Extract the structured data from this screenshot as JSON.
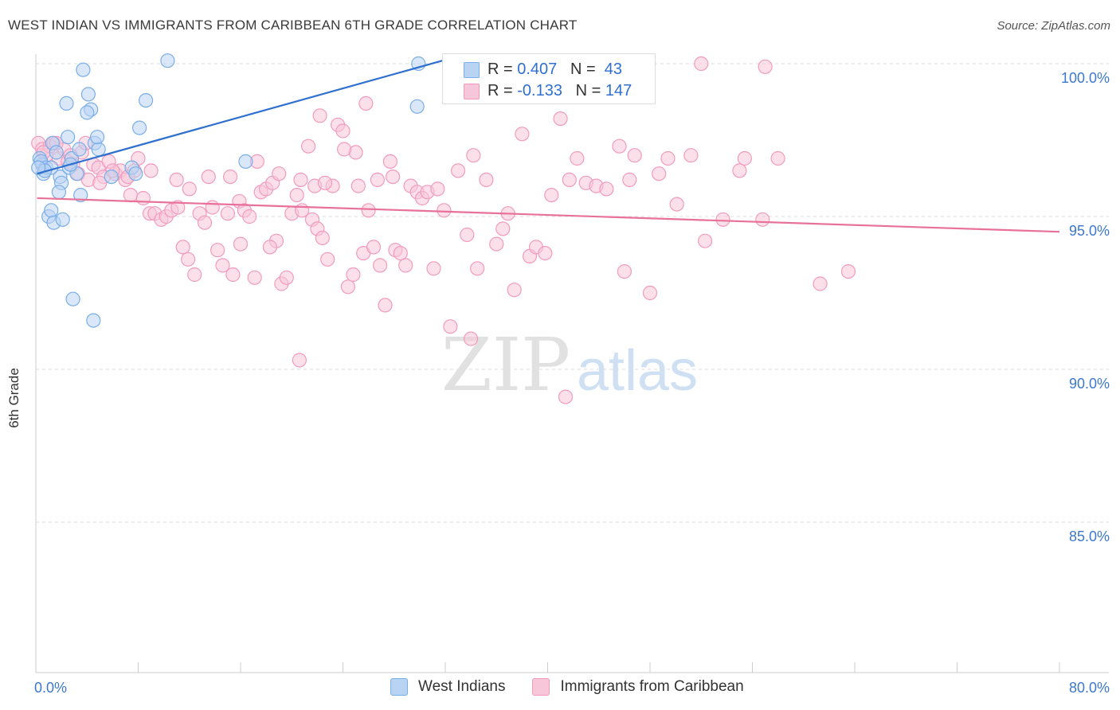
{
  "chart_data": {
    "type": "scatter",
    "title": "WEST INDIAN VS IMMIGRANTS FROM CARIBBEAN 6TH GRADE CORRELATION CHART",
    "source": "Source: ZipAtlas.com",
    "ylabel": "6th Grade",
    "xlim": [
      0,
      80
    ],
    "ylim": [
      80,
      101
    ],
    "x_tick_labels": {
      "left": "0.0%",
      "right": "80.0%"
    },
    "y_ticks": [
      {
        "value": 100,
        "label": "100.0%"
      },
      {
        "value": 95,
        "label": "95.0%"
      },
      {
        "value": 90,
        "label": "90.0%"
      },
      {
        "value": 85,
        "label": "85.0%"
      }
    ],
    "watermark": "ZIPatlas",
    "series": [
      {
        "name": "West Indians",
        "color": "#7aaee8",
        "fill": "#b9d3f3",
        "line_color": "#2f6fd0",
        "R": "0.407",
        "N": "43",
        "trend": {
          "x0": 0.1,
          "y0": 96.4,
          "x1": 33.5,
          "y1": 100.3
        },
        "points": [
          [
            0.3,
            96.9
          ],
          [
            0.5,
            96.7
          ],
          [
            0.6,
            96.4
          ],
          [
            0.4,
            96.8
          ],
          [
            0.8,
            96.6
          ],
          [
            1.0,
            95.0
          ],
          [
            1.2,
            95.2
          ],
          [
            1.4,
            94.8
          ],
          [
            1.3,
            97.4
          ],
          [
            1.9,
            96.3
          ],
          [
            2.0,
            96.1
          ],
          [
            2.1,
            94.9
          ],
          [
            2.6,
            96.6
          ],
          [
            2.8,
            96.9
          ],
          [
            3.2,
            96.4
          ],
          [
            3.4,
            97.2
          ],
          [
            2.4,
            98.7
          ],
          [
            2.5,
            97.6
          ],
          [
            3.7,
            99.8
          ],
          [
            4.1,
            99.0
          ],
          [
            4.3,
            98.5
          ],
          [
            4.6,
            97.4
          ],
          [
            4.9,
            97.2
          ],
          [
            5.9,
            96.3
          ],
          [
            7.5,
            96.6
          ],
          [
            7.8,
            96.4
          ],
          [
            8.1,
            97.9
          ],
          [
            8.6,
            98.8
          ],
          [
            10.3,
            100.1
          ],
          [
            4.8,
            97.6
          ],
          [
            3.5,
            95.7
          ],
          [
            2.9,
            92.3
          ],
          [
            4.5,
            91.6
          ],
          [
            16.4,
            96.8
          ],
          [
            29.9,
            100.0
          ],
          [
            29.8,
            98.6
          ],
          [
            1.2,
            96.6
          ],
          [
            1.8,
            95.8
          ],
          [
            2.7,
            96.7
          ],
          [
            4.0,
            98.4
          ],
          [
            0.7,
            96.5
          ],
          [
            0.2,
            96.6
          ],
          [
            1.6,
            97.1
          ]
        ]
      },
      {
        "name": "Immigrants from Caribbean",
        "color": "#f29bbd",
        "fill": "#f7c6d8",
        "line_color": "#e8719a",
        "R": "-0.133",
        "N": "147",
        "trend": {
          "x0": 0.1,
          "y0": 95.6,
          "x1": 80.0,
          "y1": 94.5
        },
        "points": [
          [
            0.2,
            97.4
          ],
          [
            0.5,
            97.2
          ],
          [
            0.8,
            97.0
          ],
          [
            1.1,
            97.3
          ],
          [
            1.4,
            97.4
          ],
          [
            1.8,
            96.9
          ],
          [
            2.2,
            97.2
          ],
          [
            2.5,
            96.8
          ],
          [
            2.9,
            96.7
          ],
          [
            3.3,
            96.4
          ],
          [
            3.6,
            97.1
          ],
          [
            4.1,
            96.2
          ],
          [
            4.5,
            96.7
          ],
          [
            4.9,
            96.6
          ],
          [
            5.3,
            96.3
          ],
          [
            5.7,
            96.8
          ],
          [
            6.2,
            96.4
          ],
          [
            6.6,
            96.5
          ],
          [
            7.0,
            96.2
          ],
          [
            7.4,
            95.7
          ],
          [
            7.7,
            96.5
          ],
          [
            8.0,
            96.9
          ],
          [
            8.4,
            95.6
          ],
          [
            8.9,
            95.1
          ],
          [
            9.3,
            95.1
          ],
          [
            9.8,
            94.9
          ],
          [
            10.2,
            95.0
          ],
          [
            10.6,
            95.2
          ],
          [
            11.1,
            95.3
          ],
          [
            11.5,
            94.0
          ],
          [
            11.9,
            93.6
          ],
          [
            12.4,
            93.1
          ],
          [
            12.8,
            95.1
          ],
          [
            13.2,
            94.8
          ],
          [
            13.8,
            95.3
          ],
          [
            14.2,
            93.9
          ],
          [
            14.6,
            93.4
          ],
          [
            15.0,
            95.1
          ],
          [
            15.4,
            93.1
          ],
          [
            15.9,
            95.5
          ],
          [
            16.3,
            95.2
          ],
          [
            16.7,
            95.0
          ],
          [
            17.1,
            93.0
          ],
          [
            17.6,
            95.8
          ],
          [
            18.0,
            95.9
          ],
          [
            18.5,
            96.1
          ],
          [
            18.8,
            94.2
          ],
          [
            19.2,
            92.8
          ],
          [
            19.6,
            93.0
          ],
          [
            20.0,
            95.1
          ],
          [
            20.4,
            95.7
          ],
          [
            20.8,
            95.2
          ],
          [
            21.3,
            97.3
          ],
          [
            21.6,
            94.9
          ],
          [
            22.0,
            94.6
          ],
          [
            22.4,
            94.3
          ],
          [
            22.8,
            93.6
          ],
          [
            23.2,
            96.0
          ],
          [
            23.6,
            98.0
          ],
          [
            24.0,
            97.8
          ],
          [
            24.4,
            92.7
          ],
          [
            24.8,
            93.1
          ],
          [
            25.2,
            96.0
          ],
          [
            25.6,
            93.8
          ],
          [
            26.0,
            95.2
          ],
          [
            26.4,
            94.0
          ],
          [
            26.9,
            93.4
          ],
          [
            27.3,
            92.1
          ],
          [
            27.7,
            96.8
          ],
          [
            28.1,
            93.9
          ],
          [
            28.5,
            93.8
          ],
          [
            28.9,
            93.4
          ],
          [
            29.3,
            96.0
          ],
          [
            29.8,
            95.8
          ],
          [
            30.2,
            95.6
          ],
          [
            30.6,
            95.8
          ],
          [
            31.1,
            93.3
          ],
          [
            31.4,
            95.9
          ],
          [
            31.9,
            95.2
          ],
          [
            32.4,
            91.4
          ],
          [
            33.0,
            96.5
          ],
          [
            33.7,
            94.4
          ],
          [
            34.5,
            93.3
          ],
          [
            35.2,
            96.2
          ],
          [
            36.0,
            94.1
          ],
          [
            36.5,
            94.6
          ],
          [
            36.9,
            95.1
          ],
          [
            37.4,
            92.6
          ],
          [
            38.0,
            97.7
          ],
          [
            38.6,
            93.7
          ],
          [
            39.1,
            94.0
          ],
          [
            39.8,
            93.8
          ],
          [
            40.3,
            95.7
          ],
          [
            41.0,
            98.2
          ],
          [
            41.7,
            96.2
          ],
          [
            42.3,
            96.9
          ],
          [
            43.0,
            96.1
          ],
          [
            43.8,
            96.0
          ],
          [
            44.6,
            95.9
          ],
          [
            46.0,
            93.2
          ],
          [
            46.4,
            96.2
          ],
          [
            46.8,
            97.0
          ],
          [
            48.0,
            92.5
          ],
          [
            48.7,
            96.4
          ],
          [
            49.4,
            96.9
          ],
          [
            50.1,
            95.4
          ],
          [
            51.2,
            97.0
          ],
          [
            52.3,
            94.2
          ],
          [
            53.7,
            94.9
          ],
          [
            55.0,
            96.5
          ],
          [
            55.4,
            96.9
          ],
          [
            56.8,
            94.9
          ],
          [
            58.0,
            96.9
          ],
          [
            61.3,
            92.8
          ],
          [
            63.5,
            93.2
          ],
          [
            20.7,
            96.2
          ],
          [
            21.8,
            96.0
          ],
          [
            22.6,
            96.1
          ],
          [
            25.0,
            97.1
          ],
          [
            26.7,
            96.2
          ],
          [
            27.9,
            96.3
          ],
          [
            19.0,
            96.4
          ],
          [
            18.3,
            94.0
          ],
          [
            17.3,
            96.8
          ],
          [
            16.0,
            94.1
          ],
          [
            15.2,
            96.3
          ],
          [
            13.5,
            96.3
          ],
          [
            12.0,
            95.9
          ],
          [
            11.0,
            96.2
          ],
          [
            9.0,
            96.5
          ],
          [
            7.2,
            96.3
          ],
          [
            6.0,
            96.5
          ],
          [
            5.0,
            96.1
          ],
          [
            0.6,
            97.1
          ],
          [
            1.6,
            97.4
          ],
          [
            2.7,
            97.0
          ],
          [
            3.9,
            97.4
          ],
          [
            22.2,
            98.3
          ],
          [
            24.1,
            97.2
          ],
          [
            34.2,
            97.0
          ],
          [
            45.6,
            97.3
          ],
          [
            52.0,
            100.0
          ],
          [
            57.0,
            99.9
          ],
          [
            25.8,
            98.7
          ],
          [
            20.6,
            90.3
          ],
          [
            41.4,
            89.1
          ],
          [
            34.0,
            91.0
          ]
        ]
      }
    ]
  }
}
